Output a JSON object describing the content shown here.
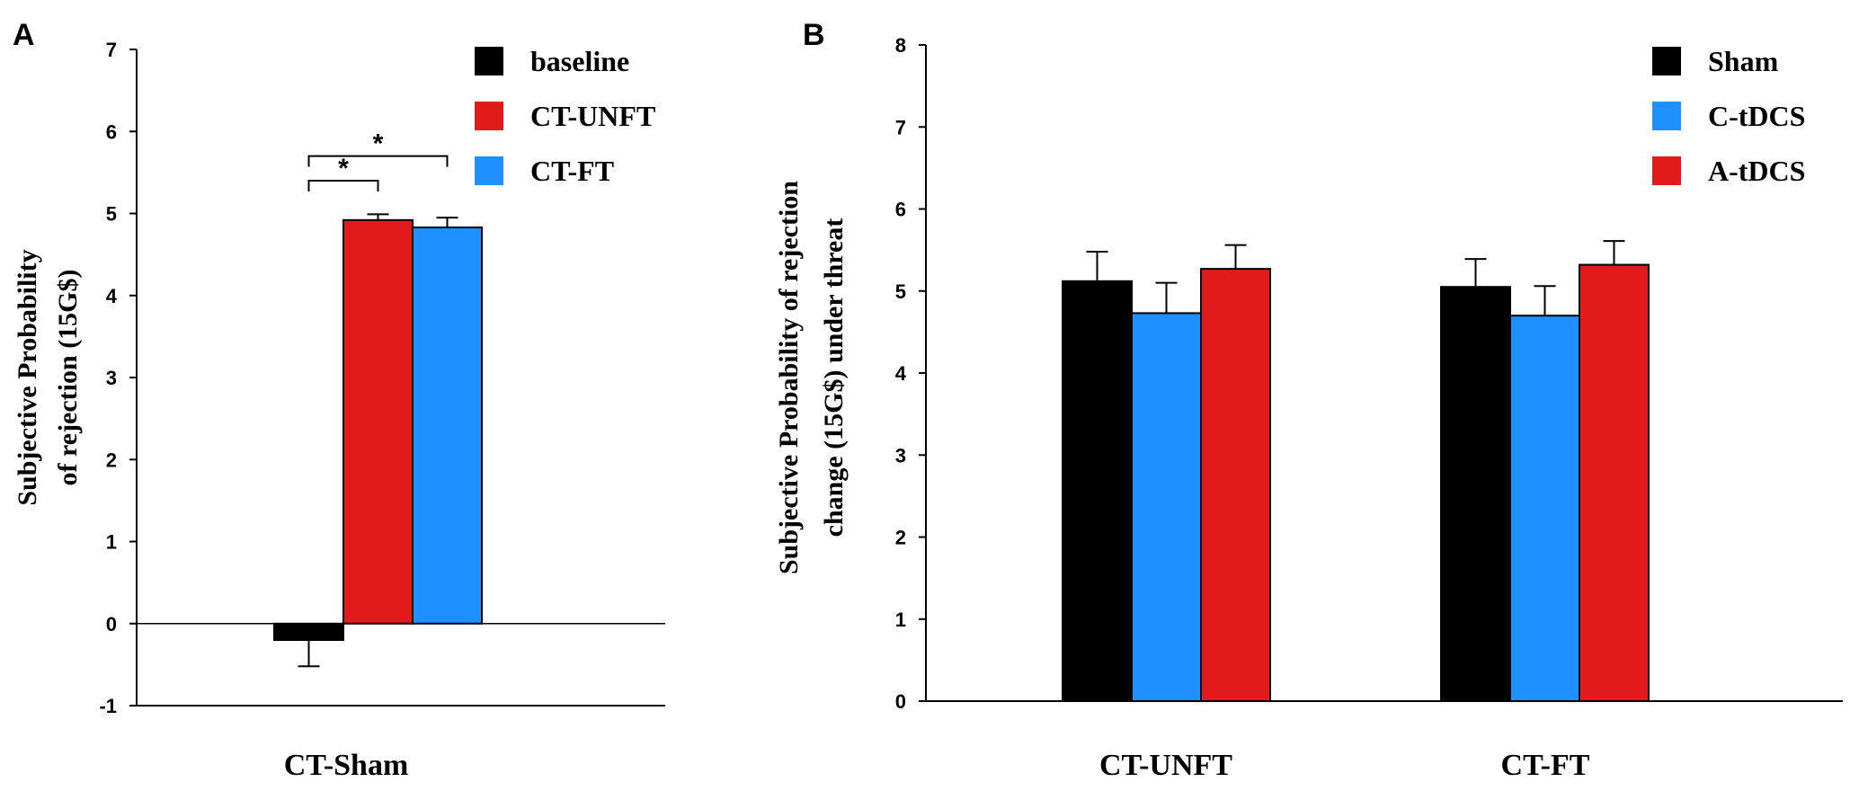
{
  "chart_data": [
    {
      "panel": "A",
      "type": "bar",
      "ylabel_lines": [
        "Subjective Probability",
        "of rejection (15G$)"
      ],
      "xlabel": "",
      "categories": [
        "CT-Sham"
      ],
      "ylim": [
        -1,
        7
      ],
      "yticks": [
        -1,
        0,
        1,
        2,
        3,
        4,
        5,
        6,
        7
      ],
      "series": [
        {
          "name": "baseline",
          "color": "#000000",
          "values": [
            -0.2
          ],
          "errors": [
            0.32
          ]
        },
        {
          "name": "CT-UNFT",
          "color": "#e31a1c",
          "values": [
            4.92
          ],
          "errors": [
            0.07
          ]
        },
        {
          "name": "CT-FT",
          "color": "#1e90ff",
          "values": [
            4.83
          ],
          "errors": [
            0.12
          ]
        }
      ],
      "significance": [
        {
          "from": "baseline",
          "to": "CT-UNFT",
          "label": "*"
        },
        {
          "from": "baseline",
          "to": "CT-FT",
          "label": "*"
        }
      ],
      "legend_position": "top-right"
    },
    {
      "panel": "B",
      "type": "bar",
      "ylabel_lines": [
        "Subjective Probability of rejection",
        "change (15G$) under threat"
      ],
      "xlabel": "",
      "categories": [
        "CT-UNFT",
        "CT-FT"
      ],
      "ylim": [
        0,
        8
      ],
      "yticks": [
        0,
        1,
        2,
        3,
        4,
        5,
        6,
        7,
        8
      ],
      "series": [
        {
          "name": "Sham",
          "color": "#000000",
          "values": [
            5.12,
            5.05
          ],
          "errors": [
            0.36,
            0.34
          ]
        },
        {
          "name": "C-tDCS",
          "color": "#1e90ff",
          "values": [
            4.73,
            4.7
          ],
          "errors": [
            0.37,
            0.36
          ]
        },
        {
          "name": "A-tDCS",
          "color": "#e31a1c",
          "values": [
            5.27,
            5.32
          ],
          "errors": [
            0.29,
            0.29
          ]
        }
      ],
      "legend_position": "top-right"
    }
  ]
}
